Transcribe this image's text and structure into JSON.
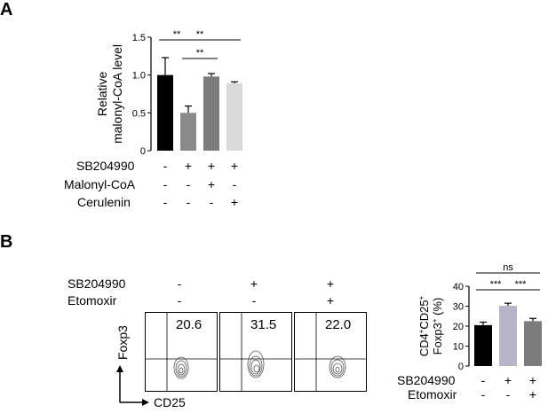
{
  "panels": {
    "a": "A",
    "b": "B"
  },
  "panel_a": {
    "conditions": [
      {
        "label": "SB204990",
        "values": [
          "-",
          "+",
          "+",
          "+"
        ]
      },
      {
        "label": "Malonyl-CoA",
        "values": [
          "-",
          "-",
          "+",
          "-"
        ]
      },
      {
        "label": "Cerulenin",
        "values": [
          "-",
          "-",
          "-",
          "+"
        ]
      }
    ]
  },
  "panel_b_flow": {
    "conditions": [
      {
        "label": "SB204990",
        "values": [
          "-",
          "+",
          "+"
        ]
      },
      {
        "label": "Etomoxir",
        "values": [
          "-",
          "-",
          "+"
        ]
      }
    ],
    "plots": [
      {
        "value": "20.6"
      },
      {
        "value": "31.5"
      },
      {
        "value": "22.0"
      }
    ],
    "y_axis_label": "Foxp3",
    "x_axis_label": "CD25"
  },
  "panel_b_bar": {
    "conditions": [
      {
        "label": "SB204990",
        "values": [
          "-",
          "+",
          "+"
        ]
      },
      {
        "label": "Etomoxir",
        "values": [
          "-",
          "-",
          "+"
        ]
      }
    ]
  },
  "colors": {
    "black": "#000000",
    "dark_gray": "#6e6e6e",
    "mid_gray": "#8a8a8a",
    "light_purple_gray": "#b8b4c8",
    "light_gray": "#d9d9d9"
  },
  "chart_data": [
    {
      "type": "bar",
      "ylabel": "Relative malonyl-CoA level",
      "ylabel_lines": [
        "Relative",
        "malonyl-CoA level"
      ],
      "ylim": [
        0,
        1.5
      ],
      "yticks": [
        "0",
        "0.5",
        "1.0",
        "1.5"
      ],
      "categories": [
        "1",
        "2",
        "3",
        "4"
      ],
      "values": [
        1.0,
        0.5,
        0.98,
        0.89
      ],
      "errors": [
        0.23,
        0.09,
        0.04,
        0.02
      ],
      "colors": [
        "#000000",
        "#8a8a8a",
        "#7c7c7c",
        "#d9d9d9"
      ],
      "significance": [
        {
          "from": 0,
          "to": 1,
          "label": "**"
        },
        {
          "from": 0,
          "to": 3,
          "label": "**"
        },
        {
          "from": 1,
          "to": 2,
          "label": "**"
        }
      ]
    },
    {
      "type": "bar",
      "ylabel": "CD4+CD25+ Foxp3+ (%)",
      "ylabel_line1": "CD4",
      "ylabel_sup1": "+",
      "ylabel_mid1": "CD25",
      "ylabel_sup2": "+",
      "ylabel_line2": "Foxp3",
      "ylabel_sup3": "+",
      "ylabel_tail": " (%)",
      "ylim": [
        0,
        40
      ],
      "yticks": [
        "0",
        "10",
        "20",
        "30",
        "40"
      ],
      "categories": [
        "1",
        "2",
        "3"
      ],
      "values": [
        20.5,
        30.2,
        22.5
      ],
      "errors": [
        1.5,
        1.3,
        1.4
      ],
      "colors": [
        "#000000",
        "#b8b4c8",
        "#7c7c7c"
      ],
      "significance": [
        {
          "from": 0,
          "to": 2,
          "label": "ns"
        },
        {
          "from": 0,
          "to": 1,
          "label": "***"
        },
        {
          "from": 1,
          "to": 2,
          "label": "***"
        }
      ]
    }
  ]
}
